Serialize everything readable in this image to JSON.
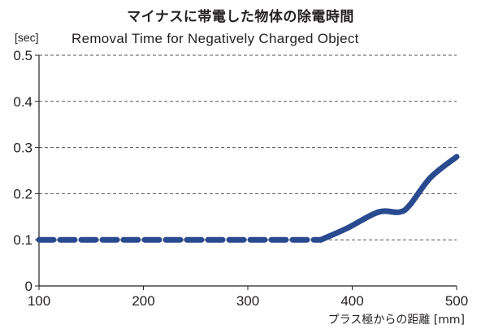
{
  "chart_data": {
    "type": "line",
    "title": "マイナスに帯電した物体の除電時間",
    "subtitle": "Removal Time for Negatively Charged Object",
    "ylabel": "[sec]",
    "xlabel": "プラス極からの距離 [mm]",
    "xlim": [
      100,
      500
    ],
    "ylim": [
      0,
      0.5
    ],
    "x_ticks": [
      "100",
      "200",
      "300",
      "400",
      "500"
    ],
    "y_ticks": [
      "0",
      "0.1",
      "0.2",
      "0.3",
      "0.4",
      "0.5"
    ],
    "grid": "horizontal dashed",
    "series": [
      {
        "color": "#2a4a8f",
        "dashed_segment": {
          "x": [
            100,
            370
          ],
          "y": [
            0.1,
            0.1
          ]
        },
        "solid_segment": {
          "x": [
            370,
            395,
            425,
            445,
            455,
            475,
            500
          ],
          "y": [
            0.1,
            0.125,
            0.16,
            0.16,
            0.175,
            0.235,
            0.28
          ]
        }
      }
    ]
  }
}
